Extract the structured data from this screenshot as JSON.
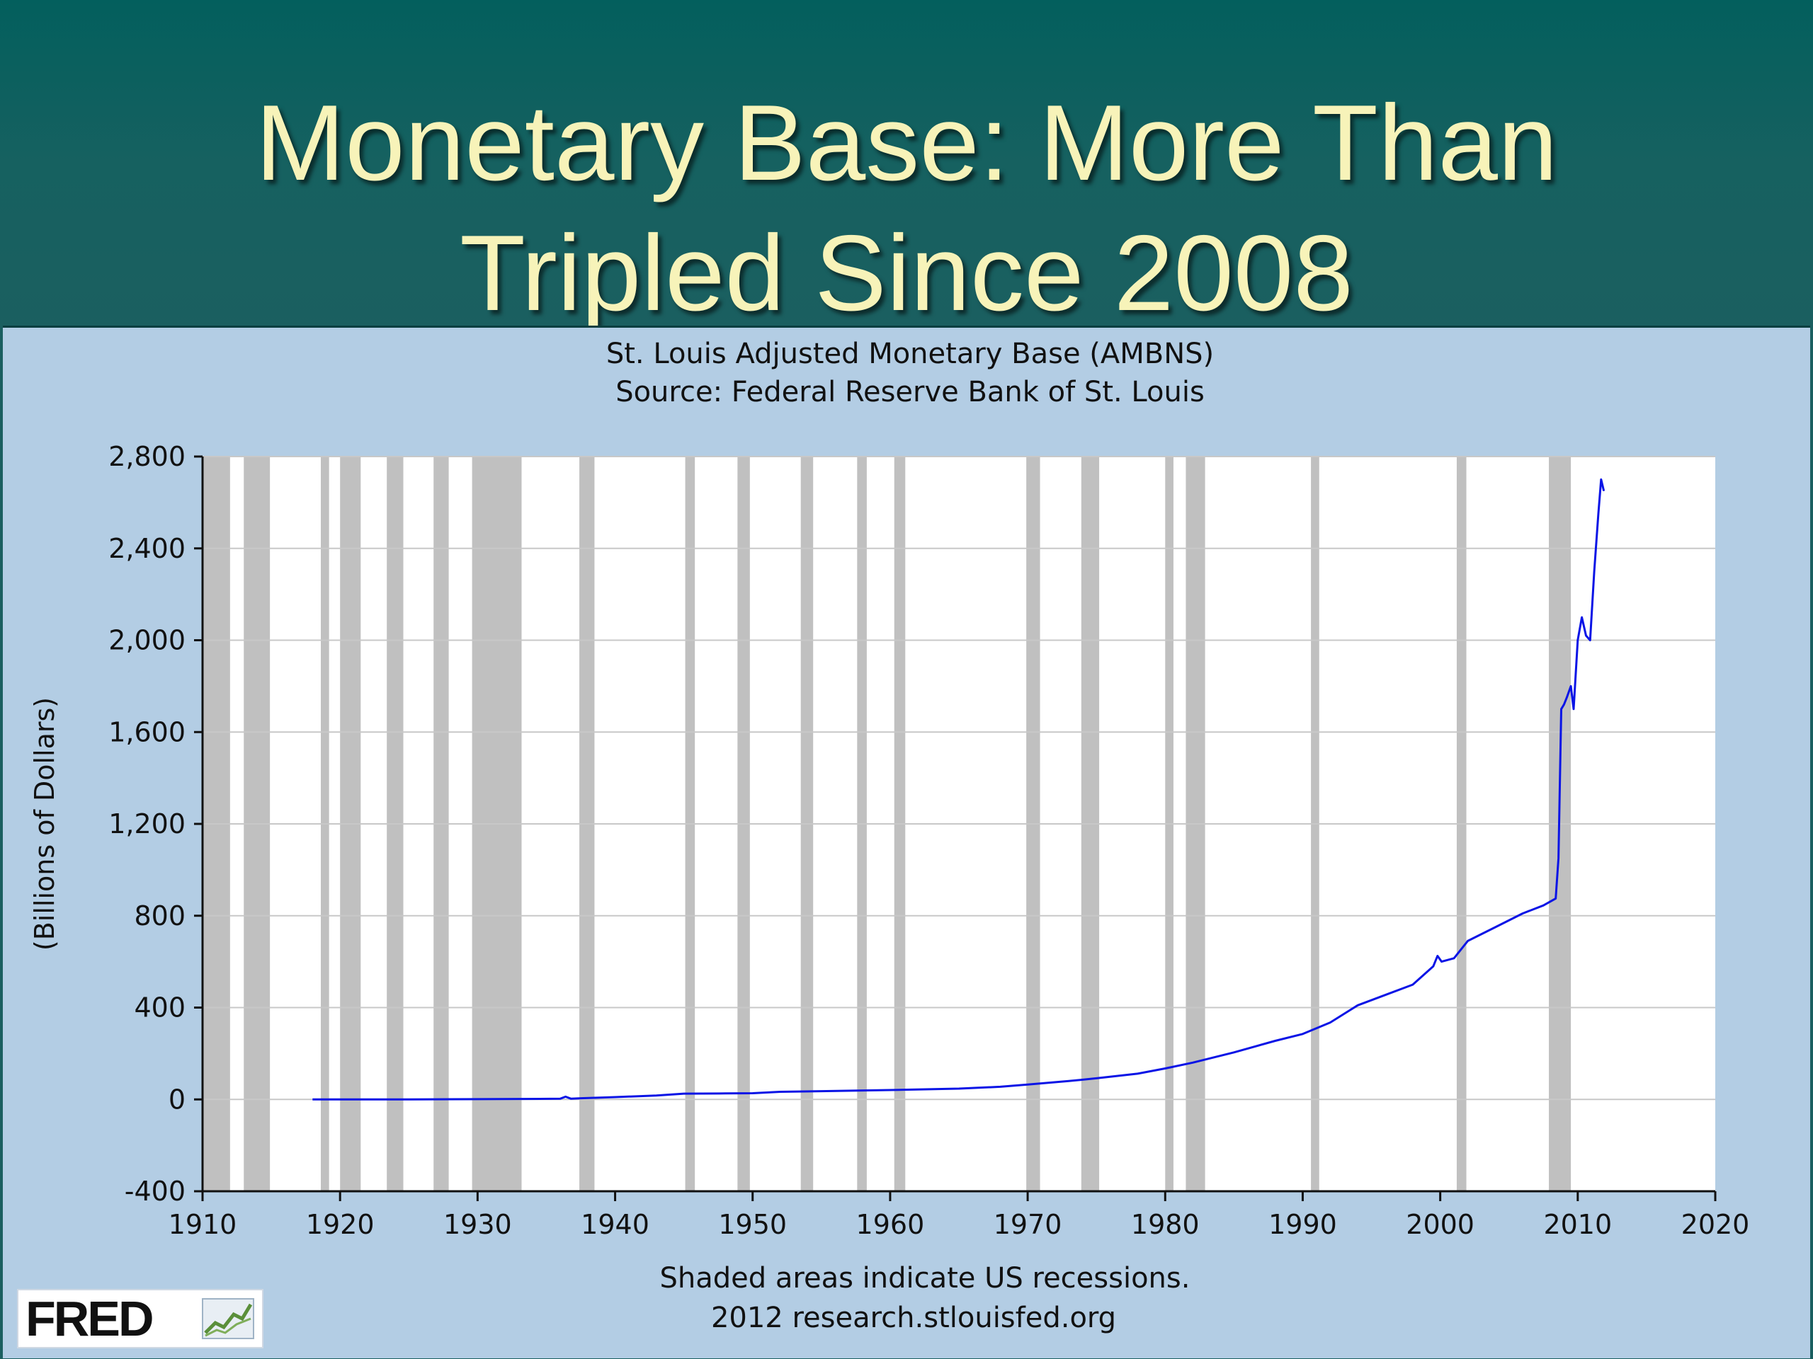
{
  "slide": {
    "title_line1": "Monetary Base: More Than",
    "title_line2": "Tripled Since 2008"
  },
  "logo": {
    "text": "FRED"
  },
  "colors": {
    "line": "#0a14e6",
    "recession": "#c0c0c0",
    "panel": "#b3cde4",
    "plot_bg": "#ffffff",
    "title": "#f7f3b9"
  },
  "chart_data": {
    "type": "line",
    "title": "St. Louis Adjusted Monetary Base (AMBNS)",
    "subtitle": "Source: Federal Reserve Bank of St. Louis",
    "xlabel": "",
    "ylabel": "(Billions of Dollars)",
    "xlim": [
      1910,
      2020
    ],
    "ylim": [
      -400,
      2800
    ],
    "xticks": [
      "1910",
      "1920",
      "1930",
      "1940",
      "1950",
      "1960",
      "1970",
      "1980",
      "1990",
      "2000",
      "2010",
      "2020"
    ],
    "yticks": [
      "-400",
      "0",
      "400",
      "800",
      "1,200",
      "1,600",
      "2,000",
      "2,400",
      "2,800"
    ],
    "ytick_values": [
      -400,
      0,
      400,
      800,
      1200,
      1600,
      2000,
      2400,
      2800
    ],
    "grid": true,
    "footer_line1": "Shaded areas indicate US recessions.",
    "footer_line2": "2012 research.stlouisfed.org",
    "recessions": [
      [
        1910.0,
        1912.0
      ],
      [
        1913.0,
        1914.9
      ],
      [
        1918.6,
        1919.2
      ],
      [
        1920.0,
        1921.5
      ],
      [
        1923.4,
        1924.6
      ],
      [
        1926.8,
        1927.9
      ],
      [
        1929.6,
        1933.2
      ],
      [
        1937.4,
        1938.5
      ],
      [
        1945.1,
        1945.8
      ],
      [
        1948.9,
        1949.8
      ],
      [
        1953.5,
        1954.4
      ],
      [
        1957.6,
        1958.3
      ],
      [
        1960.3,
        1961.1
      ],
      [
        1969.9,
        1970.9
      ],
      [
        1973.9,
        1975.2
      ],
      [
        1980.0,
        1980.6
      ],
      [
        1981.5,
        1982.9
      ],
      [
        1990.6,
        1991.2
      ],
      [
        2001.2,
        2001.9
      ],
      [
        2007.9,
        2009.5
      ]
    ],
    "series": [
      {
        "name": "AMBNS",
        "x": [
          1918,
          1925,
          1930,
          1936,
          1936.4,
          1936.8,
          1937.5,
          1940,
          1943,
          1945,
          1948,
          1950,
          1952,
          1955,
          1960,
          1965,
          1968,
          1970,
          1973,
          1975,
          1978,
          1980,
          1982,
          1985,
          1988,
          1990,
          1992,
          1994,
          1996,
          1998,
          1999.5,
          1999.8,
          2000.1,
          2001,
          2002,
          2004,
          2006,
          2007.5,
          2008.4,
          2008.6,
          2008.8,
          2009.0,
          2009.2,
          2009.5,
          2009.7,
          2010.0,
          2010.3,
          2010.6,
          2010.9,
          2011.2,
          2011.5,
          2011.7,
          2011.9
        ],
        "y": [
          0,
          0,
          1,
          3,
          12,
          3,
          5,
          10,
          17,
          25,
          26,
          27,
          33,
          36,
          41,
          47,
          55,
          65,
          80,
          92,
          112,
          135,
          160,
          205,
          255,
          285,
          335,
          410,
          455,
          500,
          580,
          625,
          600,
          615,
          690,
          750,
          810,
          845,
          875,
          1050,
          1700,
          1720,
          1750,
          1800,
          1700,
          2000,
          2100,
          2020,
          2000,
          2300,
          2550,
          2700,
          2650
        ]
      }
    ]
  }
}
